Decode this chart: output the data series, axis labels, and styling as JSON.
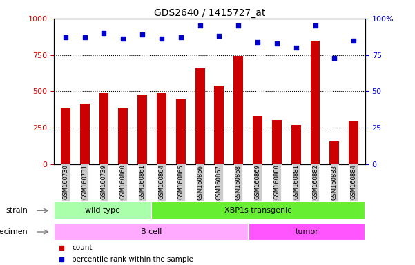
{
  "title": "GDS2640 / 1415727_at",
  "samples": [
    "GSM160730",
    "GSM160731",
    "GSM160739",
    "GSM160860",
    "GSM160861",
    "GSM160864",
    "GSM160865",
    "GSM160866",
    "GSM160867",
    "GSM160868",
    "GSM160869",
    "GSM160880",
    "GSM160881",
    "GSM160882",
    "GSM160883",
    "GSM160884"
  ],
  "counts": [
    390,
    415,
    490,
    390,
    480,
    490,
    450,
    660,
    540,
    745,
    330,
    305,
    270,
    850,
    155,
    295
  ],
  "percentiles": [
    87,
    87,
    90,
    86,
    89,
    86,
    87,
    95,
    88,
    95,
    84,
    83,
    80,
    95,
    73,
    85
  ],
  "bar_color": "#cc0000",
  "dot_color": "#0000cc",
  "strain_groups": [
    {
      "label": "wild type",
      "start": 0,
      "end": 5
    },
    {
      "label": "XBP1s transgenic",
      "start": 5,
      "end": 16
    }
  ],
  "specimen_groups": [
    {
      "label": "B cell",
      "start": 0,
      "end": 10
    },
    {
      "label": "tumor",
      "start": 10,
      "end": 16
    }
  ],
  "strain_colors": [
    "#aaffaa",
    "#66ee33"
  ],
  "specimen_colors": [
    "#ffaaff",
    "#ff55ff"
  ],
  "ylim_left": [
    0,
    1000
  ],
  "ylim_right": [
    0,
    100
  ],
  "yticks_left": [
    0,
    250,
    500,
    750,
    1000
  ],
  "yticks_right": [
    0,
    25,
    50,
    75,
    100
  ],
  "grid_values": [
    250,
    500,
    750
  ],
  "legend_count_label": "count",
  "legend_pct_label": "percentile rank within the sample",
  "strain_label": "strain",
  "specimen_label": "specimen",
  "tick_label_bg": "#cccccc",
  "bar_width": 0.5
}
